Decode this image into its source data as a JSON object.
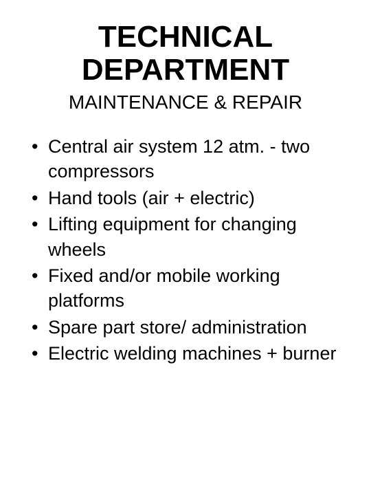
{
  "title": {
    "text": "TECHNICAL DEPARTMENT",
    "fontsize": 44,
    "fontweight": "bold",
    "color": "#000000",
    "align": "center"
  },
  "subtitle": {
    "text": "MAINTENANCE & REPAIR",
    "fontsize": 28,
    "fontweight": "normal",
    "color": "#000000",
    "align": "center"
  },
  "bullets": {
    "fontsize": 27,
    "color": "#000000",
    "items": [
      "Central air system 12 atm. - two compressors",
      "Hand tools (air + electric)",
      "Lifting equipment for changing wheels",
      "Fixed and/or mobile working platforms",
      "Spare part store/ administration",
      "Electric welding machines + burner"
    ]
  },
  "background_color": "#ffffff"
}
